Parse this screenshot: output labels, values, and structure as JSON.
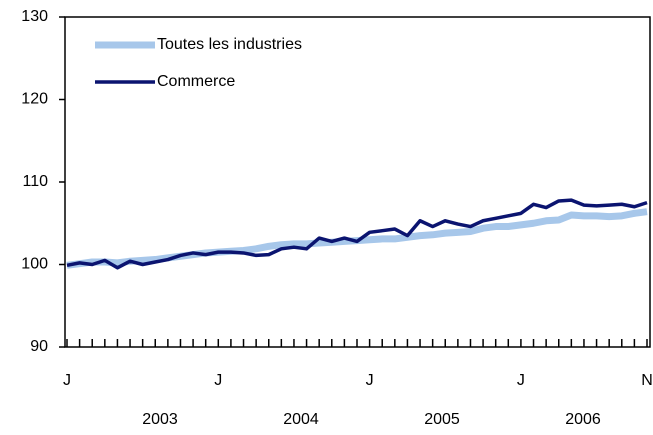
{
  "chart_data": {
    "type": "line",
    "categories": [
      "J",
      null,
      null,
      null,
      null,
      null,
      null,
      null,
      null,
      null,
      null,
      null,
      "J",
      null,
      null,
      null,
      null,
      null,
      null,
      null,
      null,
      null,
      null,
      null,
      "J",
      null,
      null,
      null,
      null,
      null,
      null,
      null,
      null,
      null,
      null,
      null,
      "J",
      null,
      null,
      null,
      null,
      null,
      null,
      null,
      null,
      null,
      "N"
    ],
    "x_groups": [
      "2003",
      "2004",
      "2005",
      "2006"
    ],
    "series": [
      {
        "name": "Toutes les industries",
        "color": "#a7c7ea",
        "width": 7,
        "values": [
          99.9,
          100.1,
          100.3,
          100.3,
          100.2,
          100.4,
          100.5,
          100.6,
          100.8,
          101.0,
          101.2,
          101.4,
          101.5,
          101.6,
          101.7,
          101.9,
          102.2,
          102.4,
          102.5,
          102.5,
          102.6,
          102.7,
          102.8,
          102.9,
          103.0,
          103.1,
          103.1,
          103.3,
          103.5,
          103.6,
          103.8,
          103.9,
          104.0,
          104.4,
          104.6,
          104.6,
          104.8,
          105.0,
          105.3,
          105.4,
          106.0,
          105.9,
          105.9,
          105.8,
          105.9,
          106.2,
          106.4
        ]
      },
      {
        "name": "Commerce",
        "color": "#0b1470",
        "width": 3.5,
        "values": [
          99.9,
          100.2,
          100.0,
          100.5,
          99.6,
          100.4,
          100.0,
          100.3,
          100.6,
          101.1,
          101.4,
          101.2,
          101.5,
          101.5,
          101.4,
          101.1,
          101.2,
          101.9,
          102.1,
          101.9,
          103.2,
          102.8,
          103.2,
          102.8,
          103.9,
          104.1,
          104.3,
          103.5,
          105.3,
          104.6,
          105.3,
          104.9,
          104.6,
          105.3,
          105.6,
          105.9,
          106.2,
          107.3,
          106.9,
          107.7,
          107.8,
          107.2,
          107.1,
          107.2,
          107.3,
          107.0,
          107.5
        ]
      }
    ],
    "ylim": [
      90,
      130
    ],
    "yticks": [
      90,
      100,
      110,
      120,
      130
    ],
    "legend": "upper-left"
  }
}
